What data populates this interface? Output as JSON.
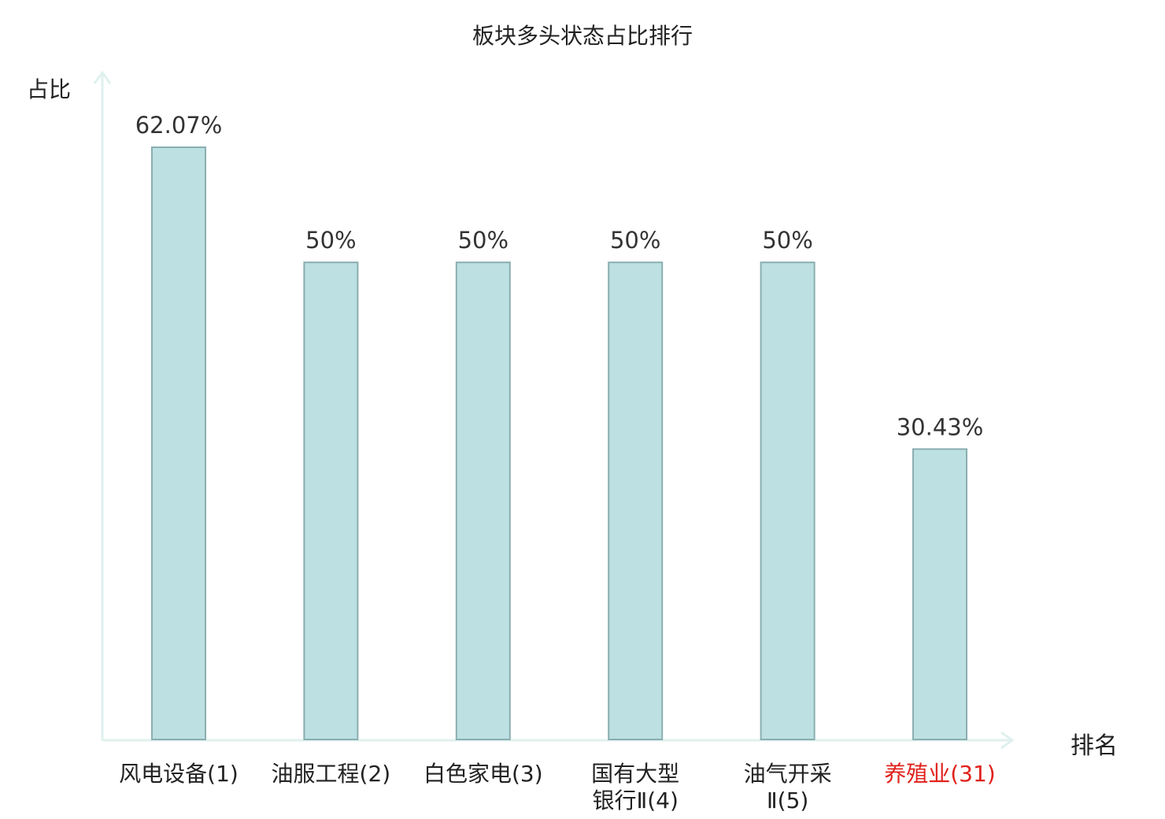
{
  "chart_data": {
    "type": "bar",
    "title": "板块多头状态占比排行",
    "ylabel": "占比",
    "xlabel": "排名",
    "categories": [
      "风电设备(1)",
      "油服工程(2)",
      "白色家电(3)",
      "国有大型\n银行Ⅱ(4)",
      "油气开采\nⅡ(5)",
      "养殖业(31)"
    ],
    "values": [
      62.07,
      50,
      50,
      50,
      50,
      30.43
    ],
    "value_labels": [
      "62.07%",
      "50%",
      "50%",
      "50%",
      "50%",
      "30.43%"
    ],
    "highlight_index": 5,
    "ylim": [
      0,
      62.07
    ],
    "grid": false,
    "colors": {
      "bar_fill": "#bde0e3",
      "bar_stroke": "#8aaeb1",
      "axis": "#dff1ee",
      "highlight_label": "#e0201b",
      "text": "#222222"
    }
  }
}
